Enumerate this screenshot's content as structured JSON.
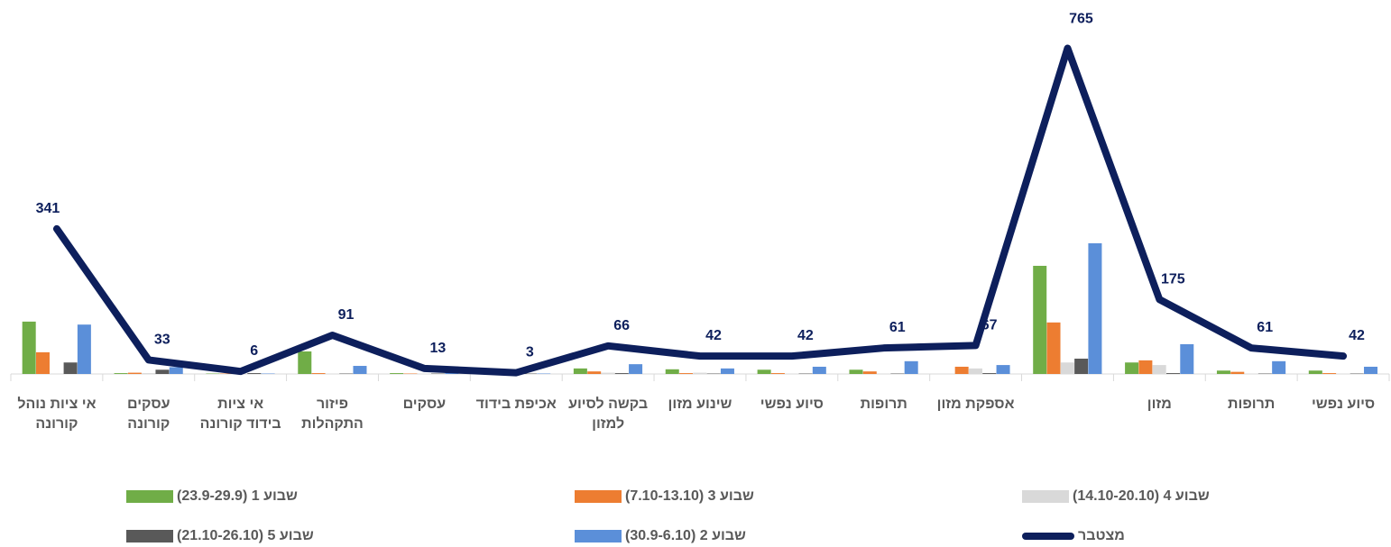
{
  "chart_data": {
    "type": "bar_line",
    "categories": [
      "אי ציות נוהל קורונה",
      "עסקים קורונה",
      "אי ציות בידוד קורונה",
      "פיזור התקהלות",
      "עסקים",
      "אכיפת בידוד",
      "בקשה לסיוע למזון",
      "שינוע מזון",
      "סיוע נפשי",
      "תרופות",
      "אספקת מזון",
      null,
      "מזון",
      "תרופות",
      "סיוע נפשי"
    ],
    "series": [
      {
        "name": "שבוע 1 (23.9-29.9)",
        "color": "#70ad47",
        "type": "bar",
        "values": [
          123,
          2,
          1,
          53,
          2,
          0,
          13,
          11,
          10,
          10,
          0,
          254,
          27,
          8,
          8
        ]
      },
      {
        "name": "שבוע 3 (7.10-13.10)",
        "color": "#ed7d31",
        "type": "bar",
        "values": [
          51,
          3,
          1,
          2,
          1,
          0,
          6,
          2,
          2,
          6,
          17,
          121,
          32,
          5,
          2
        ]
      },
      {
        "name": "שבוע 4 (14.10-20.10)",
        "color": "#d9d9d9",
        "type": "bar",
        "values": [
          0,
          2,
          1,
          1,
          1,
          1,
          3,
          3,
          1,
          1,
          13,
          27,
          21,
          1,
          1
        ]
      },
      {
        "name": "שבוע 5 (21.10-26.10)",
        "color": "#595959",
        "type": "bar",
        "values": [
          27,
          10,
          2,
          1,
          1,
          1,
          2,
          1,
          1,
          1,
          2,
          36,
          2,
          1,
          1
        ]
      },
      {
        "name": "שבוע 2 (30.9-6.10)",
        "color": "#5b8fd9",
        "type": "bar",
        "values": [
          116,
          16,
          1,
          19,
          3,
          1,
          23,
          13,
          17,
          30,
          21,
          307,
          70,
          30,
          17
        ]
      },
      {
        "name": "מצטבר",
        "color": "#0d1f5c",
        "type": "line",
        "values": [
          341,
          33,
          6,
          91,
          13,
          3,
          66,
          42,
          42,
          61,
          67,
          765,
          175,
          61,
          42
        ]
      }
    ],
    "ylim": [
      0,
      800
    ],
    "legend": "bottom"
  }
}
